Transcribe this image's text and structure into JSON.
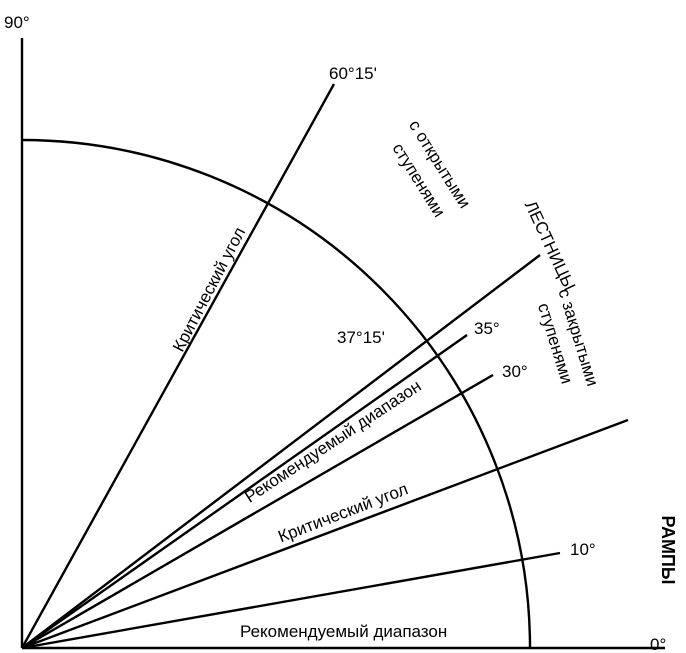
{
  "axis": {
    "top_label": "90°",
    "right_label": "0°"
  },
  "angles": {
    "a60": "60°15'",
    "a37": "37°15'",
    "a35": "35°",
    "a30": "30°",
    "a10": "10°"
  },
  "texts": {
    "critical_angle_upper": "Критический угол",
    "open_steps_line1": "с открытыми",
    "open_steps_line2": "ступенями",
    "stairs": "ЛЕСТНИЦЫ",
    "closed_steps_line1": "с закрытыми",
    "closed_steps_line2": "ступенями",
    "recommended_range_upper": "Рекомендуемый диапазон",
    "critical_angle_lower": "Критический угол",
    "ramps": "РАМПЫ",
    "recommended_range_bottom": "Рекомендуемый диапазон"
  }
}
